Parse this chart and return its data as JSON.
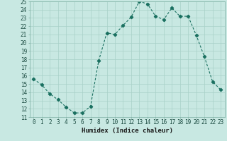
{
  "x": [
    0,
    1,
    2,
    3,
    4,
    5,
    6,
    7,
    8,
    9,
    10,
    11,
    12,
    13,
    14,
    15,
    16,
    17,
    18,
    19,
    20,
    21,
    22,
    23
  ],
  "y": [
    15.6,
    14.9,
    13.8,
    13.1,
    12.2,
    11.5,
    11.5,
    12.3,
    17.8,
    21.2,
    21.0,
    22.1,
    23.1,
    25.0,
    24.7,
    23.2,
    22.8,
    24.2,
    23.2,
    23.2,
    20.9,
    18.3,
    15.3,
    14.3
  ],
  "line_color": "#1a7060",
  "bg_color": "#c8e8e2",
  "grid_color": "#a8d0c8",
  "xlabel": "Humidex (Indice chaleur)",
  "ylim": [
    11,
    25
  ],
  "xlim_min": -0.5,
  "xlim_max": 23.5,
  "yticks": [
    11,
    12,
    13,
    14,
    15,
    16,
    17,
    18,
    19,
    20,
    21,
    22,
    23,
    24,
    25
  ],
  "xticks": [
    0,
    1,
    2,
    3,
    4,
    5,
    6,
    7,
    8,
    9,
    10,
    11,
    12,
    13,
    14,
    15,
    16,
    17,
    18,
    19,
    20,
    21,
    22,
    23
  ],
  "tick_fontsize": 5.5,
  "label_fontsize": 6.5
}
